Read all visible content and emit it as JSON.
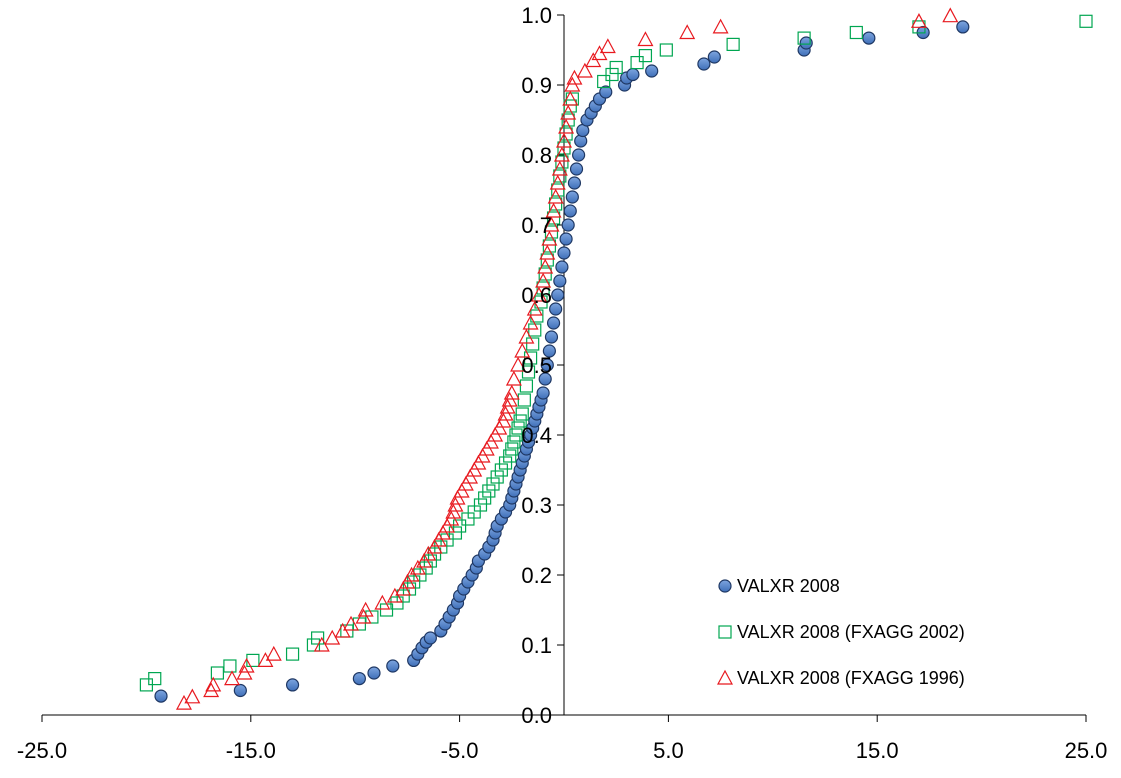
{
  "chart_data": {
    "type": "scatter",
    "title": "",
    "xlabel": "",
    "ylabel": "",
    "xlim": [
      -25,
      25
    ],
    "ylim": [
      0,
      1
    ],
    "x_ticks": [
      "-25.0",
      "-15.0",
      "-5.0",
      "5.0",
      "15.0",
      "25.0"
    ],
    "y_ticks": [
      "0.0",
      "0.1",
      "0.2",
      "0.3",
      "0.4",
      "0.5",
      "0.6",
      "0.7",
      "0.8",
      "0.9",
      "1.0"
    ],
    "grid": false,
    "legend_position": "bottom-right",
    "series": [
      {
        "name": "VALXR 2008",
        "marker": "circle",
        "color": "#4F81BD",
        "stroke": "#1F3864",
        "points": [
          [
            -19.3,
            0.027
          ],
          [
            -15.5,
            0.035
          ],
          [
            -13.0,
            0.043
          ],
          [
            -9.8,
            0.052
          ],
          [
            -9.1,
            0.06
          ],
          [
            -8.2,
            0.07
          ],
          [
            -7.2,
            0.078
          ],
          [
            -7.0,
            0.087
          ],
          [
            -6.8,
            0.096
          ],
          [
            -6.6,
            0.104
          ],
          [
            -6.4,
            0.11
          ],
          [
            -5.9,
            0.12
          ],
          [
            -5.7,
            0.13
          ],
          [
            -5.5,
            0.14
          ],
          [
            -5.3,
            0.15
          ],
          [
            -5.1,
            0.16
          ],
          [
            -5.0,
            0.17
          ],
          [
            -4.8,
            0.18
          ],
          [
            -4.6,
            0.19
          ],
          [
            -4.4,
            0.2
          ],
          [
            -4.2,
            0.21
          ],
          [
            -4.1,
            0.22
          ],
          [
            -3.8,
            0.23
          ],
          [
            -3.6,
            0.24
          ],
          [
            -3.4,
            0.25
          ],
          [
            -3.3,
            0.26
          ],
          [
            -3.2,
            0.27
          ],
          [
            -3.0,
            0.28
          ],
          [
            -2.8,
            0.29
          ],
          [
            -2.6,
            0.3
          ],
          [
            -2.5,
            0.31
          ],
          [
            -2.4,
            0.32
          ],
          [
            -2.3,
            0.33
          ],
          [
            -2.2,
            0.34
          ],
          [
            -2.1,
            0.35
          ],
          [
            -2.0,
            0.36
          ],
          [
            -1.9,
            0.37
          ],
          [
            -1.8,
            0.38
          ],
          [
            -1.7,
            0.39
          ],
          [
            -1.6,
            0.4
          ],
          [
            -1.5,
            0.41
          ],
          [
            -1.4,
            0.42
          ],
          [
            -1.3,
            0.43
          ],
          [
            -1.2,
            0.44
          ],
          [
            -1.1,
            0.45
          ],
          [
            -1.0,
            0.46
          ],
          [
            -0.9,
            0.48
          ],
          [
            -0.8,
            0.5
          ],
          [
            -0.7,
            0.52
          ],
          [
            -0.6,
            0.54
          ],
          [
            -0.5,
            0.56
          ],
          [
            -0.4,
            0.58
          ],
          [
            -0.3,
            0.6
          ],
          [
            -0.2,
            0.62
          ],
          [
            -0.1,
            0.64
          ],
          [
            0.0,
            0.66
          ],
          [
            0.1,
            0.68
          ],
          [
            0.2,
            0.7
          ],
          [
            0.3,
            0.72
          ],
          [
            0.4,
            0.74
          ],
          [
            0.5,
            0.76
          ],
          [
            0.6,
            0.78
          ],
          [
            0.7,
            0.8
          ],
          [
            0.8,
            0.82
          ],
          [
            0.9,
            0.835
          ],
          [
            1.1,
            0.85
          ],
          [
            1.3,
            0.86
          ],
          [
            1.5,
            0.87
          ],
          [
            1.7,
            0.88
          ],
          [
            2.0,
            0.89
          ],
          [
            2.9,
            0.9
          ],
          [
            3.0,
            0.91
          ],
          [
            3.3,
            0.915
          ],
          [
            4.2,
            0.92
          ],
          [
            6.7,
            0.93
          ],
          [
            7.2,
            0.94
          ],
          [
            11.5,
            0.95
          ],
          [
            11.6,
            0.96
          ],
          [
            14.6,
            0.967
          ],
          [
            17.2,
            0.975
          ],
          [
            19.1,
            0.983
          ]
        ]
      },
      {
        "name": "VALXR 2008 (FXAGG 2002)",
        "marker": "square",
        "color": "#00A651",
        "points": [
          [
            -20.0,
            0.043
          ],
          [
            -19.6,
            0.052
          ],
          [
            -16.6,
            0.06
          ],
          [
            -16.0,
            0.07
          ],
          [
            -14.9,
            0.078
          ],
          [
            -13.0,
            0.087
          ],
          [
            -12.0,
            0.1
          ],
          [
            -11.8,
            0.11
          ],
          [
            -10.4,
            0.12
          ],
          [
            -9.8,
            0.13
          ],
          [
            -9.2,
            0.14
          ],
          [
            -8.5,
            0.15
          ],
          [
            -8.0,
            0.16
          ],
          [
            -7.7,
            0.17
          ],
          [
            -7.4,
            0.18
          ],
          [
            -7.2,
            0.19
          ],
          [
            -6.9,
            0.2
          ],
          [
            -6.6,
            0.21
          ],
          [
            -6.4,
            0.22
          ],
          [
            -6.2,
            0.23
          ],
          [
            -5.9,
            0.24
          ],
          [
            -5.6,
            0.25
          ],
          [
            -5.2,
            0.26
          ],
          [
            -5.0,
            0.27
          ],
          [
            -4.6,
            0.28
          ],
          [
            -4.3,
            0.29
          ],
          [
            -4.0,
            0.3
          ],
          [
            -3.8,
            0.31
          ],
          [
            -3.6,
            0.32
          ],
          [
            -3.4,
            0.33
          ],
          [
            -3.2,
            0.34
          ],
          [
            -3.0,
            0.35
          ],
          [
            -2.8,
            0.36
          ],
          [
            -2.6,
            0.37
          ],
          [
            -2.5,
            0.38
          ],
          [
            -2.4,
            0.39
          ],
          [
            -2.3,
            0.4
          ],
          [
            -2.2,
            0.41
          ],
          [
            -2.1,
            0.42
          ],
          [
            -2.0,
            0.43
          ],
          [
            -1.9,
            0.45
          ],
          [
            -1.8,
            0.47
          ],
          [
            -1.7,
            0.49
          ],
          [
            -1.6,
            0.51
          ],
          [
            -1.5,
            0.53
          ],
          [
            -1.4,
            0.55
          ],
          [
            -1.3,
            0.57
          ],
          [
            -1.1,
            0.59
          ],
          [
            -1.0,
            0.61
          ],
          [
            -0.9,
            0.63
          ],
          [
            -0.8,
            0.65
          ],
          [
            -0.7,
            0.67
          ],
          [
            -0.6,
            0.69
          ],
          [
            -0.5,
            0.71
          ],
          [
            -0.4,
            0.73
          ],
          [
            -0.3,
            0.75
          ],
          [
            -0.2,
            0.77
          ],
          [
            -0.1,
            0.79
          ],
          [
            0.0,
            0.81
          ],
          [
            0.1,
            0.83
          ],
          [
            0.2,
            0.85
          ],
          [
            0.3,
            0.87
          ],
          [
            0.4,
            0.88
          ],
          [
            1.9,
            0.905
          ],
          [
            2.3,
            0.915
          ],
          [
            2.5,
            0.925
          ],
          [
            3.5,
            0.932
          ],
          [
            3.9,
            0.942
          ],
          [
            4.9,
            0.95
          ],
          [
            8.1,
            0.958
          ],
          [
            11.5,
            0.967
          ],
          [
            14.0,
            0.975
          ],
          [
            17.0,
            0.983
          ],
          [
            25.0,
            0.991
          ]
        ]
      },
      {
        "name": "VALXR 2008 (FXAGG 1996)",
        "marker": "triangle",
        "color": "#E8191F",
        "points": [
          [
            -18.2,
            0.017
          ],
          [
            -17.8,
            0.026
          ],
          [
            -16.9,
            0.035
          ],
          [
            -16.8,
            0.043
          ],
          [
            -15.9,
            0.052
          ],
          [
            -15.3,
            0.06
          ],
          [
            -15.2,
            0.07
          ],
          [
            -14.3,
            0.078
          ],
          [
            -13.9,
            0.087
          ],
          [
            -11.6,
            0.1
          ],
          [
            -11.1,
            0.11
          ],
          [
            -10.6,
            0.12
          ],
          [
            -10.2,
            0.13
          ],
          [
            -9.6,
            0.14
          ],
          [
            -9.5,
            0.15
          ],
          [
            -8.7,
            0.16
          ],
          [
            -8.1,
            0.17
          ],
          [
            -7.7,
            0.18
          ],
          [
            -7.5,
            0.19
          ],
          [
            -7.3,
            0.2
          ],
          [
            -7.0,
            0.21
          ],
          [
            -6.7,
            0.22
          ],
          [
            -6.5,
            0.23
          ],
          [
            -6.2,
            0.24
          ],
          [
            -6.0,
            0.25
          ],
          [
            -5.8,
            0.26
          ],
          [
            -5.6,
            0.27
          ],
          [
            -5.4,
            0.28
          ],
          [
            -5.3,
            0.29
          ],
          [
            -5.2,
            0.3
          ],
          [
            -5.1,
            0.31
          ],
          [
            -4.9,
            0.32
          ],
          [
            -4.7,
            0.33
          ],
          [
            -4.5,
            0.34
          ],
          [
            -4.3,
            0.35
          ],
          [
            -4.1,
            0.36
          ],
          [
            -3.9,
            0.37
          ],
          [
            -3.7,
            0.38
          ],
          [
            -3.5,
            0.39
          ],
          [
            -3.3,
            0.4
          ],
          [
            -3.1,
            0.41
          ],
          [
            -2.9,
            0.42
          ],
          [
            -2.8,
            0.43
          ],
          [
            -2.7,
            0.44
          ],
          [
            -2.6,
            0.45
          ],
          [
            -2.5,
            0.46
          ],
          [
            -2.4,
            0.48
          ],
          [
            -2.2,
            0.5
          ],
          [
            -2.0,
            0.52
          ],
          [
            -1.8,
            0.54
          ],
          [
            -1.6,
            0.56
          ],
          [
            -1.4,
            0.58
          ],
          [
            -1.2,
            0.6
          ],
          [
            -1.0,
            0.62
          ],
          [
            -0.9,
            0.64
          ],
          [
            -0.8,
            0.66
          ],
          [
            -0.7,
            0.68
          ],
          [
            -0.6,
            0.7
          ],
          [
            -0.5,
            0.72
          ],
          [
            -0.4,
            0.74
          ],
          [
            -0.3,
            0.76
          ],
          [
            -0.2,
            0.78
          ],
          [
            -0.1,
            0.8
          ],
          [
            0.0,
            0.82
          ],
          [
            0.1,
            0.84
          ],
          [
            0.2,
            0.86
          ],
          [
            0.3,
            0.88
          ],
          [
            0.4,
            0.9
          ],
          [
            0.5,
            0.91
          ],
          [
            1.0,
            0.92
          ],
          [
            1.4,
            0.935
          ],
          [
            1.7,
            0.945
          ],
          [
            2.1,
            0.955
          ],
          [
            3.9,
            0.965
          ],
          [
            5.9,
            0.975
          ],
          [
            7.5,
            0.983
          ],
          [
            17.0,
            0.991
          ],
          [
            18.5,
            0.999
          ]
        ]
      }
    ]
  }
}
